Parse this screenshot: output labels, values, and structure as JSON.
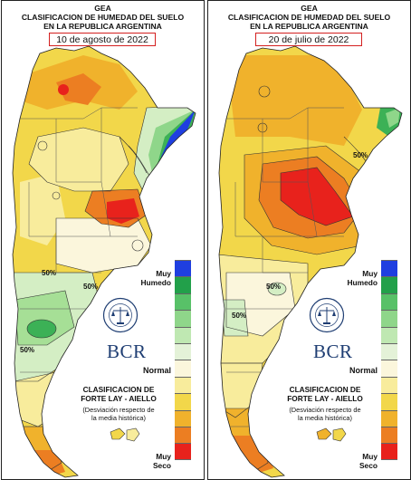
{
  "panels": [
    {
      "title_1": "GEA",
      "title_2": "CLASIFICACION DE HUMEDAD DEL SUELO",
      "title_3": "EN LA REPUBLICA ARGENTINA",
      "date": "10 de agosto de 2022",
      "contour_labels": [
        "50%",
        "50%",
        "50%"
      ],
      "logo_text": "BCR",
      "seal_text": "BOLSA DE COMERCIO DE ROSARIO",
      "classification_1": "CLASIFICACION DE",
      "classification_2": "FORTE LAY - AIELLO",
      "deviation_1": "(Desviación respecto de",
      "deviation_2": "la media histórica)",
      "legend_top_1": "Muy",
      "legend_top_2": "Humedo",
      "legend_mid": "Normal",
      "legend_bottom_1": "Muy",
      "legend_bottom_2": "Seco"
    },
    {
      "title_1": "GEA",
      "title_2": "CLASIFICACION DE HUMEDAD DEL SUELO",
      "title_3": "EN LA REPUBLICA ARGENTINA",
      "date": "20 de julio de 2022",
      "contour_labels": [
        "50%",
        "50%",
        "50%"
      ],
      "logo_text": "BCR",
      "seal_text": "BOLSA DE COMERCIO DE ROSARIO",
      "classification_1": "CLASIFICACION DE",
      "classification_2": "FORTE LAY - AIELLO",
      "deviation_1": "(Desviación respecto de",
      "deviation_2": "la media histórica)",
      "legend_top_1": "Muy",
      "legend_top_2": "Humedo",
      "legend_mid": "Normal",
      "legend_bottom_1": "Muy",
      "legend_bottom_2": "Seco"
    }
  ],
  "legend_colors": [
    "#1f3fe0",
    "#22a04a",
    "#58c168",
    "#8fd68a",
    "#bfe8b2",
    "#e4f2d8",
    "#fbf6dc",
    "#f8ec9c",
    "#f2d74a",
    "#f0b22c",
    "#ec7e22",
    "#e8221c"
  ],
  "palette": {
    "very_wet": "#1f3fe0",
    "wet": "#3cb156",
    "moist": "#a6df96",
    "light_green": "#d4eec4",
    "normal": "#fbf6dc",
    "light_yellow": "#f8ec9c",
    "yellow": "#f2d74a",
    "orange": "#f0b22c",
    "dark_orange": "#ec7e22",
    "red": "#e8221c"
  }
}
